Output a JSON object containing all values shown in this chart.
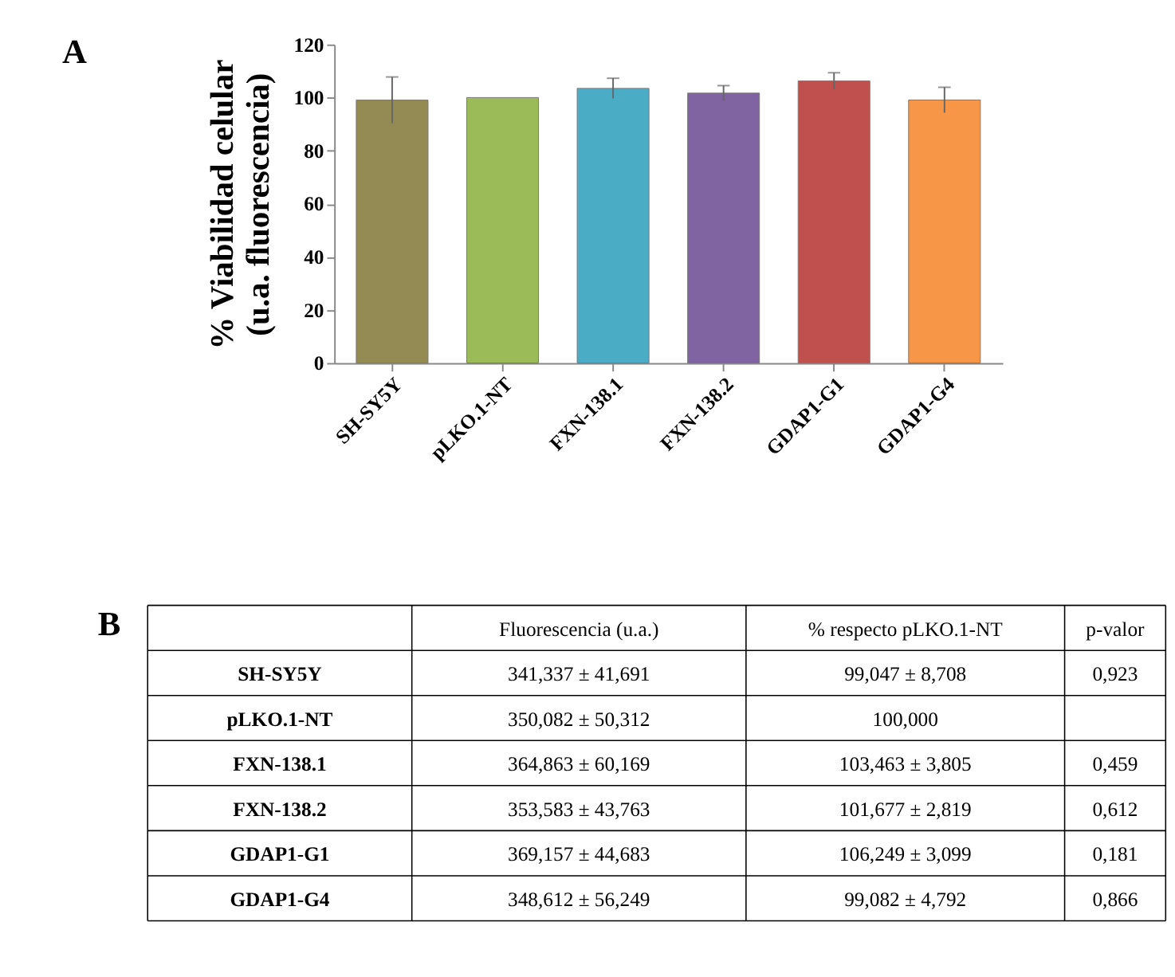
{
  "chart_data": {
    "type": "bar",
    "ylabel": "% Viabilidad celular\n(u.a. fluorescencia)",
    "categories": [
      "SH-SY5Y",
      "pLKO.1-NT",
      "FXN-138.1",
      "FXN-138.2",
      "GDAP1-G1",
      "GDAP1-G4"
    ],
    "values": [
      99.047,
      100,
      103.463,
      101.677,
      106.249,
      99.082
    ],
    "errors": [
      8.708,
      null,
      3.805,
      2.819,
      3.099,
      4.792
    ],
    "colors": [
      "#948a54",
      "#9bbb59",
      "#4bacc6",
      "#8064a2",
      "#c0504d",
      "#f79646"
    ],
    "ylim": [
      0,
      120
    ],
    "yticks": [
      0,
      20,
      40,
      60,
      80,
      100,
      120
    ],
    "grid": false,
    "annotations": [
      "A",
      "B",
      "Fluorescencia (u.a.)",
      "% respecto pLKO.1-NT",
      "p-valor",
      "SH-SY5Y",
      "341,337 ± 41,691",
      "99,047 ± 8,708",
      "0,923",
      "pLKO.1-NT",
      "350,082 ± 50,312",
      "100,000",
      "FXN-138.1",
      "364,863 ± 60,169",
      "103,463 ± 3,805",
      "0,459",
      "FXN-138.2",
      "353,583 ± 43,763",
      "101,677 ± 2,819",
      "0,612",
      "GDAP1-G1",
      "369,157 ± 44,683",
      "106,249 ± 3,099",
      "0,181",
      "GDAP1-G4",
      "348,612 ± 56,249",
      "99,082 ± 4,792",
      "0,866"
    ]
  }
}
